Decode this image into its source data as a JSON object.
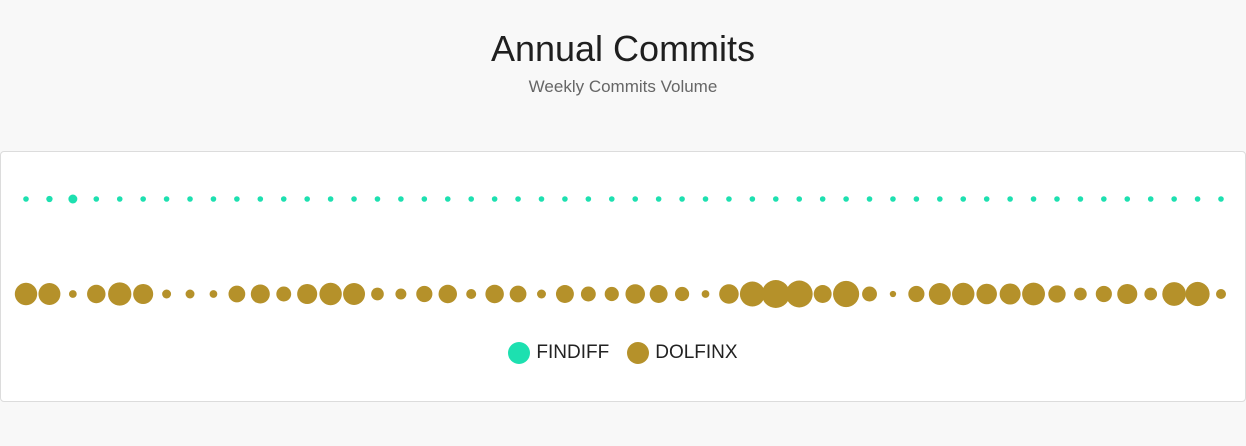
{
  "header": {
    "title": "Annual Commits",
    "subtitle": "Weekly Commits Volume"
  },
  "chart_data": {
    "type": "scatter",
    "title": "Annual Commits",
    "subtitle": "Weekly Commits Volume",
    "week_count": 52,
    "categories": [
      "FINDIFF",
      "DOLFINX"
    ],
    "series": [
      {
        "name": "FINDIFF",
        "color": "#1de0b0",
        "values": [
          1,
          2,
          4,
          1,
          1,
          1,
          1,
          1,
          1,
          1,
          1,
          1,
          1,
          1,
          1,
          1,
          1,
          1,
          1,
          1,
          1,
          1,
          1,
          1,
          1,
          1,
          1,
          1,
          1,
          1,
          1,
          1,
          1,
          1,
          1,
          1,
          1,
          1,
          1,
          1,
          1,
          1,
          1,
          1,
          1,
          1,
          1,
          1,
          1,
          1,
          1,
          1
        ]
      },
      {
        "name": "DOLFINX",
        "color": "#b5912a",
        "values": [
          25,
          24,
          3,
          17,
          27,
          20,
          4,
          4,
          3,
          14,
          18,
          11,
          20,
          25,
          24,
          8,
          6,
          13,
          17,
          5,
          17,
          14,
          4,
          16,
          11,
          10,
          19,
          16,
          10,
          3,
          19,
          31,
          39,
          36,
          16,
          34,
          11,
          2,
          13,
          24,
          25,
          21,
          22,
          26,
          15,
          8,
          13,
          20,
          8,
          28,
          29,
          5
        ]
      }
    ],
    "legend": "bottom-center",
    "grid": false
  }
}
